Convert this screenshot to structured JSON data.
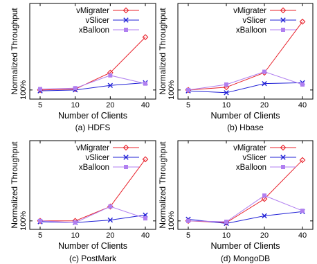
{
  "chart_data": [
    {
      "type": "line",
      "caption": "(a) HDFS",
      "xlabel": "Number of Clients",
      "ylabel": "Normalized Throughput",
      "categories": [
        "5",
        "10",
        "20",
        "40"
      ],
      "ytick_label": "100%",
      "ylim": [
        0.9,
        1.95
      ],
      "grid": false,
      "legend": "top-right",
      "series": [
        {
          "name": "vMigrater",
          "color": "#e8202a",
          "marker": "diamond",
          "values": [
            1.0,
            1.01,
            1.19,
            1.58
          ]
        },
        {
          "name": "vSlicer",
          "color": "#1f1fd6",
          "marker": "x",
          "values": [
            0.99,
            1.0,
            1.05,
            1.08
          ]
        },
        {
          "name": "xBalloon",
          "color": "#b07ff0",
          "marker": "square",
          "values": [
            1.01,
            1.02,
            1.16,
            1.07
          ]
        }
      ]
    },
    {
      "type": "line",
      "caption": "(b) Hbase",
      "xlabel": "Number of Clients",
      "ylabel": "Normalized Throughput",
      "categories": [
        "5",
        "10",
        "20",
        "40"
      ],
      "ytick_label": "100%",
      "ylim": [
        0.9,
        1.95
      ],
      "grid": false,
      "legend": "top-right",
      "series": [
        {
          "name": "vMigrater",
          "color": "#e8202a",
          "marker": "diamond",
          "values": [
            1.0,
            1.03,
            1.19,
            1.75
          ]
        },
        {
          "name": "vSlicer",
          "color": "#1f1fd6",
          "marker": "x",
          "values": [
            0.99,
            0.97,
            1.07,
            1.08
          ]
        },
        {
          "name": "xBalloon",
          "color": "#b07ff0",
          "marker": "square",
          "values": [
            1.0,
            1.06,
            1.2,
            1.06
          ]
        }
      ]
    },
    {
      "type": "line",
      "caption": "(c) PostMark",
      "xlabel": "Number of Clients",
      "ylabel": "Normalized Throughput",
      "categories": [
        "5",
        "10",
        "20",
        "40"
      ],
      "ytick_label": "100%",
      "ylim": [
        0.9,
        1.95
      ],
      "grid": false,
      "legend": "top-right",
      "series": [
        {
          "name": "vMigrater",
          "color": "#e8202a",
          "marker": "diamond",
          "values": [
            1.0,
            1.0,
            1.17,
            1.73
          ]
        },
        {
          "name": "vSlicer",
          "color": "#1f1fd6",
          "marker": "x",
          "values": [
            0.99,
            0.98,
            1.01,
            1.07
          ]
        },
        {
          "name": "xBalloon",
          "color": "#b07ff0",
          "marker": "square",
          "values": [
            1.0,
            0.98,
            1.17,
            1.03
          ]
        }
      ]
    },
    {
      "type": "line",
      "caption": "(d) MongoDB",
      "xlabel": "Number of Clients",
      "ylabel": "Normalized Throughput",
      "categories": [
        "5",
        "10",
        "20",
        "40"
      ],
      "ytick_label": "100%",
      "ylim": [
        0.9,
        1.95
      ],
      "grid": false,
      "legend": "top-right",
      "series": [
        {
          "name": "vMigrater",
          "color": "#e8202a",
          "marker": "diamond",
          "values": [
            1.0,
            0.98,
            1.26,
            1.72
          ]
        },
        {
          "name": "vSlicer",
          "color": "#1f1fd6",
          "marker": "x",
          "values": [
            1.02,
            0.97,
            1.06,
            1.11
          ]
        },
        {
          "name": "xBalloon",
          "color": "#b07ff0",
          "marker": "square",
          "values": [
            1.0,
            0.99,
            1.3,
            1.12
          ]
        }
      ]
    }
  ]
}
